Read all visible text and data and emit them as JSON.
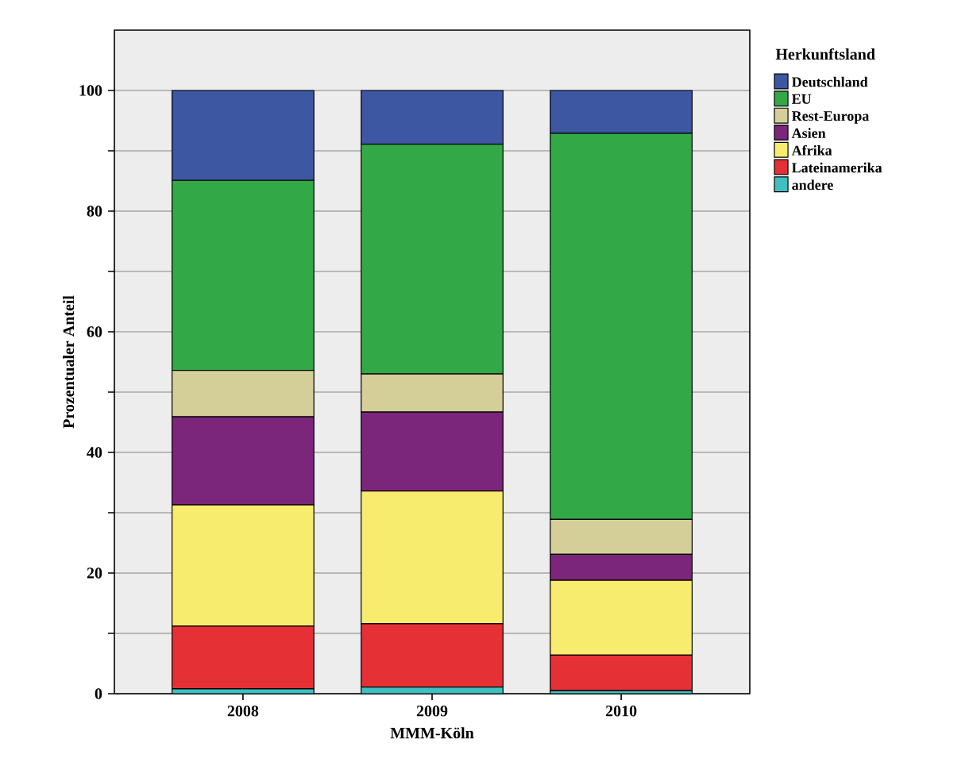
{
  "chart_data": {
    "type": "bar",
    "stacked": true,
    "xlabel": "MMM-Köln",
    "ylabel": "Prozentualer Anteil",
    "legend_title": "Herkunftsland",
    "categories": [
      "2008",
      "2009",
      "2010"
    ],
    "series": [
      {
        "name": "andere",
        "color": "#3fbfbf",
        "values": [
          0.8,
          1.1,
          0.5
        ]
      },
      {
        "name": "Lateinamerika",
        "color": "#e53135",
        "values": [
          10.4,
          10.5,
          5.9
        ]
      },
      {
        "name": "Afrika",
        "color": "#f8ec6e",
        "values": [
          20.1,
          22.0,
          12.4
        ]
      },
      {
        "name": "Asien",
        "color": "#7b267a",
        "values": [
          14.6,
          13.1,
          4.3
        ]
      },
      {
        "name": "Rest-Europa",
        "color": "#d4cf98",
        "values": [
          7.7,
          6.3,
          5.8
        ]
      },
      {
        "name": "EU",
        "color": "#33a846",
        "values": [
          31.5,
          38.1,
          64.0
        ]
      },
      {
        "name": "Deutschland",
        "color": "#3e57a3",
        "values": [
          14.9,
          8.9,
          7.1
        ]
      }
    ],
    "ylim": [
      0,
      110
    ],
    "yticks": [
      0,
      {
        "value": 10,
        "label": null
      },
      20,
      {
        "value": 30,
        "label": null
      },
      40,
      {
        "value": 50,
        "label": null
      },
      60,
      {
        "value": 70,
        "label": null
      },
      80,
      {
        "value": 90,
        "label": null
      },
      100
    ],
    "grid": "y",
    "legend": "top right"
  }
}
